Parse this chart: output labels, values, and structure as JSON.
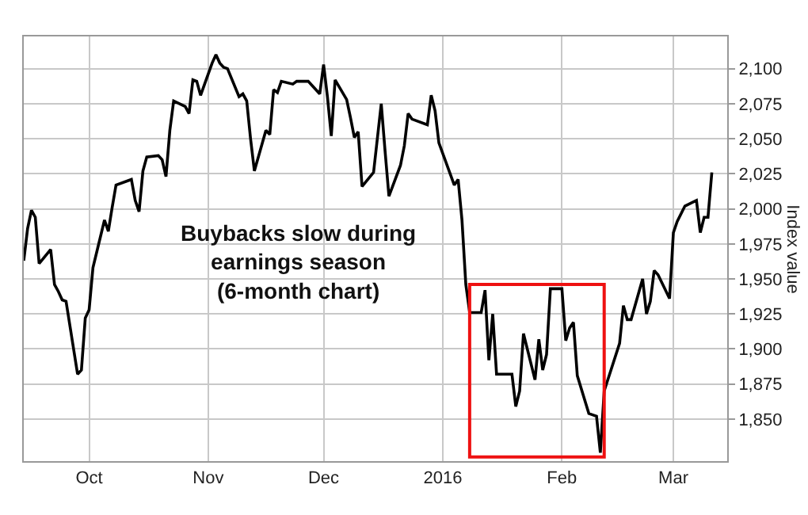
{
  "chart_data": {
    "type": "line",
    "ylabel": "Index value",
    "annotations": [
      "Buybacks slow during\nearnings season\n(6-month chart)"
    ],
    "x": [
      "2015-09-14",
      "2015-09-15",
      "2015-09-16",
      "2015-09-17",
      "2015-09-18",
      "2015-09-21",
      "2015-09-22",
      "2015-09-23",
      "2015-09-24",
      "2015-09-25",
      "2015-09-28",
      "2015-09-29",
      "2015-09-30",
      "2015-10-01",
      "2015-10-02",
      "2015-10-05",
      "2015-10-06",
      "2015-10-07",
      "2015-10-08",
      "2015-10-12",
      "2015-10-13",
      "2015-10-14",
      "2015-10-15",
      "2015-10-16",
      "2015-10-19",
      "2015-10-20",
      "2015-10-21",
      "2015-10-22",
      "2015-10-23",
      "2015-10-26",
      "2015-10-27",
      "2015-10-28",
      "2015-10-29",
      "2015-10-30",
      "2015-11-02",
      "2015-11-03",
      "2015-11-04",
      "2015-11-05",
      "2015-11-06",
      "2015-11-09",
      "2015-11-10",
      "2015-11-11",
      "2015-11-12",
      "2015-11-13",
      "2015-11-16",
      "2015-11-17",
      "2015-11-18",
      "2015-11-19",
      "2015-11-20",
      "2015-11-23",
      "2015-11-24",
      "2015-11-25",
      "2015-11-27",
      "2015-11-30",
      "2015-12-01",
      "2015-12-02",
      "2015-12-03",
      "2015-12-04",
      "2015-12-07",
      "2015-12-08",
      "2015-12-09",
      "2015-12-10",
      "2015-12-11",
      "2015-12-14",
      "2015-12-16",
      "2015-12-17",
      "2015-12-18",
      "2015-12-21",
      "2015-12-22",
      "2015-12-23",
      "2015-12-24",
      "2015-12-28",
      "2015-12-29",
      "2015-12-30",
      "2015-12-31",
      "2016-01-04",
      "2016-01-05",
      "2016-01-06",
      "2016-01-07",
      "2016-01-08",
      "2016-01-11",
      "2016-01-12",
      "2016-01-13",
      "2016-01-14",
      "2016-01-15",
      "2016-01-19",
      "2016-01-20",
      "2016-01-21",
      "2016-01-22",
      "2016-01-25",
      "2016-01-26",
      "2016-01-27",
      "2016-01-28",
      "2016-01-29",
      "2016-02-01",
      "2016-02-02",
      "2016-02-03",
      "2016-02-04",
      "2016-02-05",
      "2016-02-08",
      "2016-02-09",
      "2016-02-10",
      "2016-02-11",
      "2016-02-12",
      "2016-02-16",
      "2016-02-17",
      "2016-02-18",
      "2016-02-19",
      "2016-02-22",
      "2016-02-23",
      "2016-02-24",
      "2016-02-25",
      "2016-02-26",
      "2016-02-29",
      "2016-03-01",
      "2016-03-02",
      "2016-03-04",
      "2016-03-07",
      "2016-03-08",
      "2016-03-09",
      "2016-03-10",
      "2016-03-11"
    ],
    "series": [
      {
        "color": "#000000",
        "values": [
          1963,
          1986,
          1999,
          1994,
          1961,
          1971,
          1946,
          1941,
          1935,
          1934,
          1882,
          1885,
          1922,
          1928,
          1958,
          1992,
          1984,
          2001,
          2017,
          2021,
          2006,
          1998,
          2027,
          2037,
          2038,
          2035,
          2023,
          2056,
          2077,
          2073,
          2068,
          2092,
          2091,
          2081,
          2104,
          2110,
          2104,
          2101,
          2100,
          2080,
          2082,
          2077,
          2050,
          2027,
          2056,
          2053,
          2085,
          2083,
          2091,
          2089,
          2091,
          2091,
          2091,
          2082,
          2103,
          2080,
          2052,
          2092,
          2078,
          2065,
          2051,
          2055,
          2016,
          2026,
          2075,
          2041,
          2009,
          2031,
          2045,
          2068,
          2064,
          2060,
          2081,
          2070,
          2047,
          2017,
          2021,
          1992,
          1946,
          1926,
          1926,
          1942,
          1892,
          1925,
          1882,
          1882,
          1859,
          1870,
          1911,
          1878,
          1907,
          1885,
          1896,
          1943,
          1943,
          1906,
          1915,
          1919,
          1881,
          1854,
          1853,
          1852,
          1826,
          1870,
          1904,
          1931,
          1921,
          1921,
          1950,
          1925,
          1934,
          1956,
          1953,
          1936,
          1983,
          1991,
          2002,
          2006,
          1983,
          1994,
          1994,
          2026
        ]
      }
    ],
    "xlim": [
      "2015-09-14",
      "2016-03-15"
    ],
    "xticks": [
      {
        "value": "2015-10-01",
        "label": "Oct"
      },
      {
        "value": "2015-11-01",
        "label": "Nov"
      },
      {
        "value": "2015-12-01",
        "label": "Dec"
      },
      {
        "value": "2016-01-01",
        "label": "2016"
      },
      {
        "value": "2016-02-01",
        "label": "Feb"
      },
      {
        "value": "2016-03-01",
        "label": "Mar"
      }
    ],
    "ylim": [
      1820,
      2123
    ],
    "yticks": [
      {
        "value": 1850,
        "label": "1,850"
      },
      {
        "value": 1875,
        "label": "1,875"
      },
      {
        "value": 1900,
        "label": "1,900"
      },
      {
        "value": 1925,
        "label": "1,925"
      },
      {
        "value": 1950,
        "label": "1,950"
      },
      {
        "value": 1975,
        "label": "1,975"
      },
      {
        "value": 2000,
        "label": "2,000"
      },
      {
        "value": 2025,
        "label": "2,025"
      },
      {
        "value": 2050,
        "label": "2,050"
      },
      {
        "value": 2075,
        "label": "2,075"
      },
      {
        "value": 2100,
        "label": "2,100"
      }
    ],
    "grid": true,
    "marker": "none",
    "line_style": "solid"
  }
}
